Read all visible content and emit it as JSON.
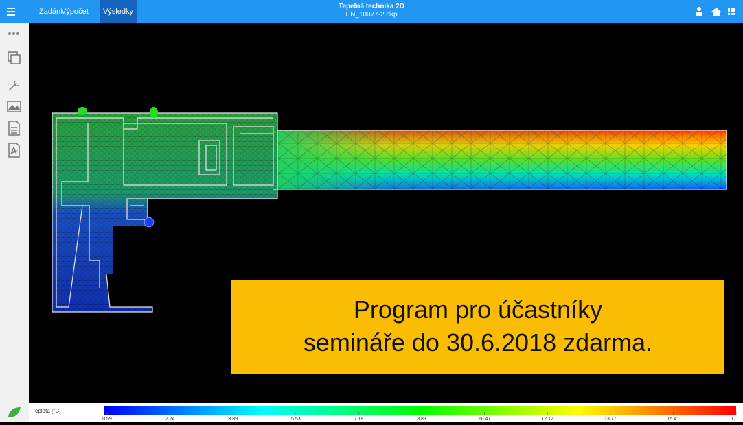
{
  "toolbar": {
    "menu": [
      "Zadání",
      "Výpočet",
      "Výsledky"
    ],
    "title": "Tepelná technika 2D",
    "file": "EN_10077-2.dkp"
  },
  "notice": {
    "lines": [
      "Program pro účastníky",
      "semináře do 30.6.2018 zdarma."
    ]
  },
  "legend": {
    "label": "Teplota [°C]",
    "ticks": [
      0.59,
      2.24,
      3.89,
      5.53,
      7.18,
      8.83,
      10.47,
      12.12,
      13.77,
      15.41,
      17
    ]
  }
}
